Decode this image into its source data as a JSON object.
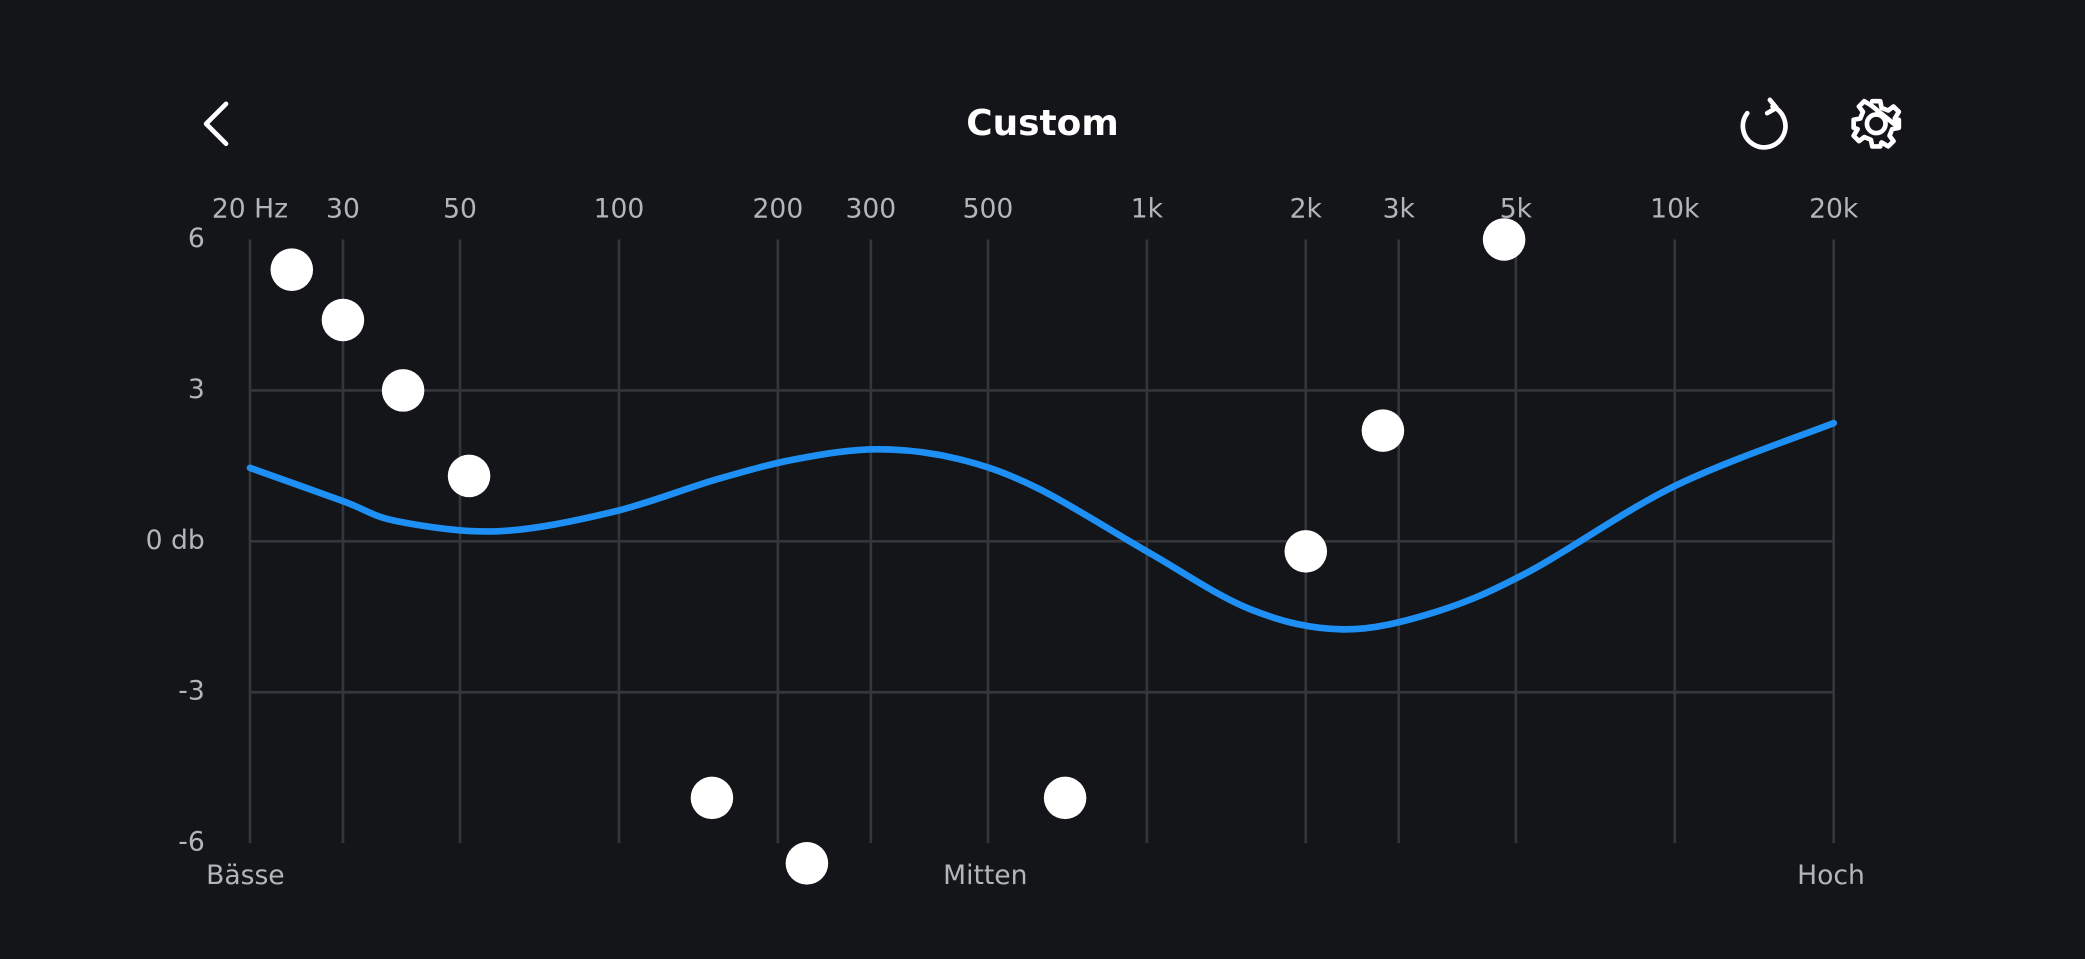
{
  "header": {
    "title": "Custom"
  },
  "chart_data": {
    "type": "line",
    "x_scale": "log",
    "xlim": [
      20,
      20000
    ],
    "ylim": [
      -6,
      6
    ],
    "xticks": [
      {
        "value": 20,
        "label": "20 Hz"
      },
      30,
      50,
      100,
      200,
      300,
      500,
      {
        "value": 1000,
        "label": "1k"
      },
      {
        "value": 2000,
        "label": "2k"
      },
      {
        "value": 3000,
        "label": "3k"
      },
      {
        "value": 5000,
        "label": "5k"
      },
      {
        "value": 10000,
        "label": "10k"
      },
      {
        "value": 20000,
        "label": "20k"
      }
    ],
    "yticks": [
      6,
      3,
      {
        "value": 0,
        "label": "0 db"
      },
      -3,
      -6
    ],
    "grid": true,
    "curve": {
      "color": "#1e90f5",
      "x": [
        20,
        30,
        38,
        59,
        97,
        154,
        218,
        309,
        438,
        620,
        1000,
        1570,
        2350,
        3530,
        5300,
        10000,
        20000
      ],
      "values": [
        1.46,
        0.8,
        0.4,
        0.2,
        0.58,
        1.24,
        1.64,
        1.83,
        1.64,
        1.06,
        -0.2,
        -1.35,
        -1.75,
        -1.4,
        -0.6,
        1.1,
        2.35
      ]
    },
    "handles": {
      "color": "#ffffff",
      "x": [
        24,
        30,
        39,
        52,
        150,
        227,
        700,
        2000,
        2800,
        4750
      ],
      "values": [
        5.4,
        4.4,
        3.0,
        1.3,
        -5.1,
        -6.4,
        -5.1,
        -0.2,
        2.2,
        6.0
      ]
    },
    "band_labels": [
      "Bässe",
      "Mitten",
      "Hoch"
    ]
  }
}
